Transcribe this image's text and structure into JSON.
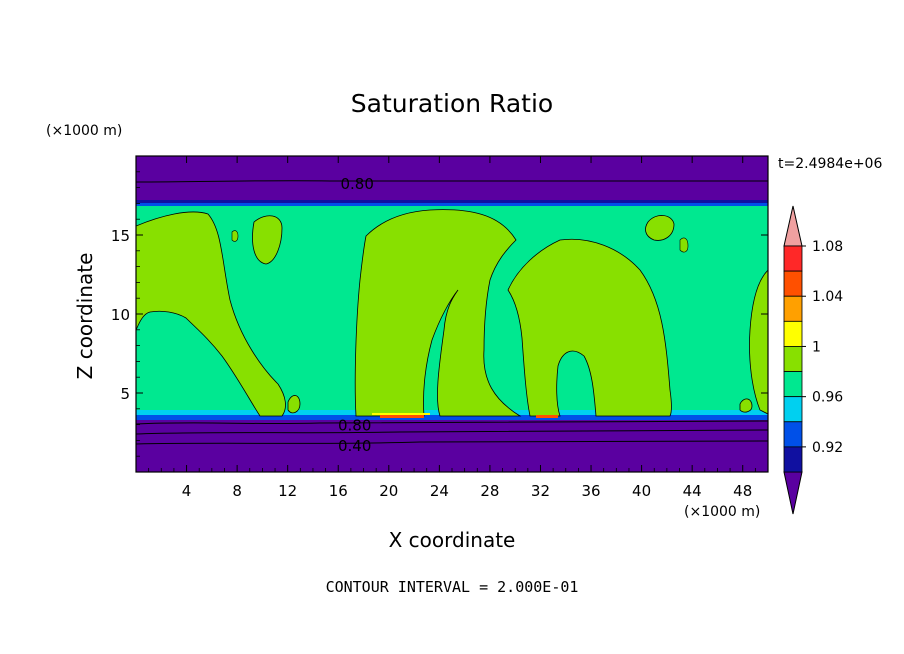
{
  "chart_data": {
    "type": "heatmap",
    "title": "Saturation Ratio",
    "xlabel": "X coordinate",
    "ylabel": "Z coordinate",
    "x_unit": "(×1000 m)",
    "y_unit": "(×1000 m)",
    "time_label": "t=2.4984e+06",
    "footer": "CONTOUR INTERVAL = 2.000E-01",
    "xlim": [
      0,
      50
    ],
    "ylim": [
      0,
      20
    ],
    "x_ticks": [
      4,
      8,
      12,
      16,
      20,
      24,
      28,
      32,
      36,
      40,
      44,
      48
    ],
    "y_ticks": [
      5,
      10,
      15
    ],
    "contour_labels": [
      {
        "text": "0.80",
        "x": 17.5,
        "z": 18.3
      },
      {
        "text": "0.80",
        "x": 17.3,
        "z": 3.0
      },
      {
        "text": "0.40",
        "x": 17.3,
        "z": 1.7
      }
    ],
    "colorbar": {
      "levels": [
        0.92,
        0.94,
        0.96,
        0.98,
        1.0,
        1.02,
        1.04,
        1.06,
        1.08,
        1.1
      ],
      "colors": [
        "#5a00a0",
        "#1010a0",
        "#0050e8",
        "#00d0f0",
        "#00e890",
        "#88e000",
        "#ffff00",
        "#ffa000",
        "#ff5000",
        "#ff2828",
        "#f0a0a0"
      ],
      "tick_labels": [
        "0.92",
        "0.96",
        "1",
        "1.04",
        "1.08"
      ]
    },
    "regions": {
      "stratosphere_low": "#5a00a0",
      "near_saturation": "#00e890",
      "supersaturated": "#88e000"
    }
  }
}
